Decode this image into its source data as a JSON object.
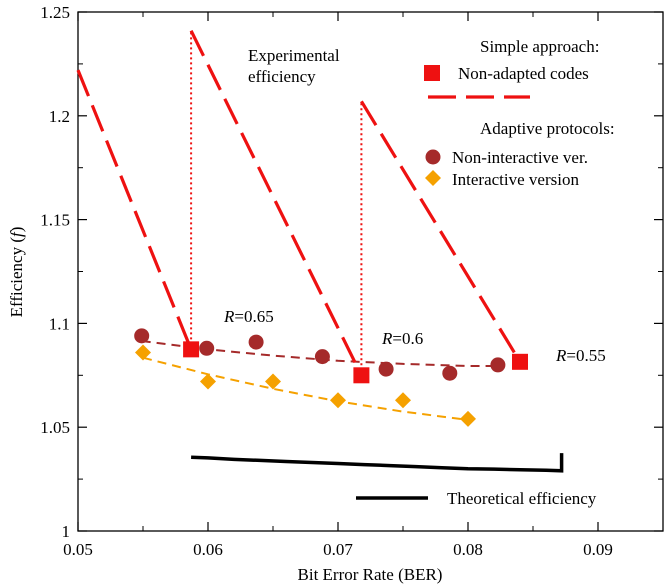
{
  "chart_data": {
    "type": "line",
    "xlabel": "Bit Error Rate (BER)",
    "ylabel_prefix": "Efficiency (",
    "ylabel_italic": "f",
    "ylabel_suffix": ")",
    "xlim": [
      0.05,
      0.095
    ],
    "ylim": [
      1.0,
      1.25
    ],
    "x_ticks": [
      0.05,
      0.06,
      0.07,
      0.08,
      0.09
    ],
    "x_tick_labels": [
      "0.05",
      "0.06",
      "0.07",
      "0.08",
      "0.09"
    ],
    "y_ticks": [
      1.0,
      1.05,
      1.1,
      1.15,
      1.2,
      1.25
    ],
    "y_tick_labels": [
      "1",
      "1.05",
      "1.1",
      "1.15",
      "1.2",
      "1.25"
    ],
    "grid": false,
    "legend_position": "top-right",
    "legend": {
      "group1_title": "Simple approach:",
      "group2_title": "Adaptive protocols:",
      "theoretical_label": "Theoretical efficiency"
    },
    "annotations": {
      "experimental_line1": "Experimental",
      "experimental_line2": "efficiency",
      "r_labels": [
        {
          "prefix": "R",
          "value": "=0.65"
        },
        {
          "prefix": "R",
          "value": "=0.6"
        },
        {
          "prefix": "R",
          "value": "=0.55"
        }
      ]
    },
    "series": [
      {
        "name": "Non-adapted codes",
        "kind": "red-squares",
        "color": "#ee1111",
        "x": [
          0.0587,
          0.0718,
          0.084
        ],
        "y": [
          1.0875,
          1.075,
          1.0815
        ]
      },
      {
        "name": "Non-interactive ver.",
        "kind": "circles",
        "color": "#a52a2a",
        "x": [
          0.0549,
          0.0599,
          0.0637,
          0.0688,
          0.0737,
          0.0786,
          0.0823
        ],
        "y": [
          1.094,
          1.088,
          1.091,
          1.084,
          1.078,
          1.076,
          1.08
        ]
      },
      {
        "name": "Interactive version",
        "kind": "diamonds",
        "color": "#f5a100",
        "x": [
          0.055,
          0.06,
          0.065,
          0.07,
          0.075,
          0.08
        ],
        "y": [
          1.086,
          1.072,
          1.072,
          1.063,
          1.063,
          1.054
        ]
      }
    ],
    "fits": {
      "non_interactive_fit": {
        "color": "#a52a2a",
        "x": [
          0.0549,
          0.06,
          0.065,
          0.07,
          0.075,
          0.08,
          0.0823
        ],
        "y": [
          1.0915,
          1.0875,
          1.0845,
          1.082,
          1.0805,
          1.0795,
          1.0795
        ]
      },
      "interactive_fit": {
        "color": "#f5a100",
        "x": [
          0.055,
          0.06,
          0.065,
          0.07,
          0.075,
          0.08
        ],
        "y": [
          1.0835,
          1.0755,
          1.0685,
          1.0625,
          1.0575,
          1.0535
        ]
      }
    },
    "experimental_segments": {
      "color": "#ee1111",
      "dashed": [
        {
          "x": [
            0.05,
            0.0587
          ],
          "y": [
            1.222,
            1.0875
          ]
        },
        {
          "x": [
            0.0587,
            0.0718
          ],
          "y": [
            1.241,
            1.075
          ]
        },
        {
          "x": [
            0.0718,
            0.084
          ],
          "y": [
            1.207,
            1.0815
          ]
        }
      ],
      "dotted": [
        {
          "x": [
            0.0587,
            0.0587
          ],
          "y": [
            1.0875,
            1.241
          ]
        },
        {
          "x": [
            0.0718,
            0.0718
          ],
          "y": [
            1.075,
            1.207
          ]
        }
      ]
    },
    "theoretical": {
      "color": "#000000",
      "x": [
        0.0587,
        0.06,
        0.062,
        0.064,
        0.066,
        0.068,
        0.07,
        0.072,
        0.074,
        0.076,
        0.078,
        0.08,
        0.082,
        0.084,
        0.086,
        0.0872,
        0.0872
      ],
      "y": [
        1.0355,
        1.0352,
        1.0345,
        1.034,
        1.0335,
        1.033,
        1.0325,
        1.032,
        1.0315,
        1.031,
        1.0305,
        1.03,
        1.0298,
        1.0295,
        1.0293,
        1.029,
        1.0375
      ]
    }
  }
}
